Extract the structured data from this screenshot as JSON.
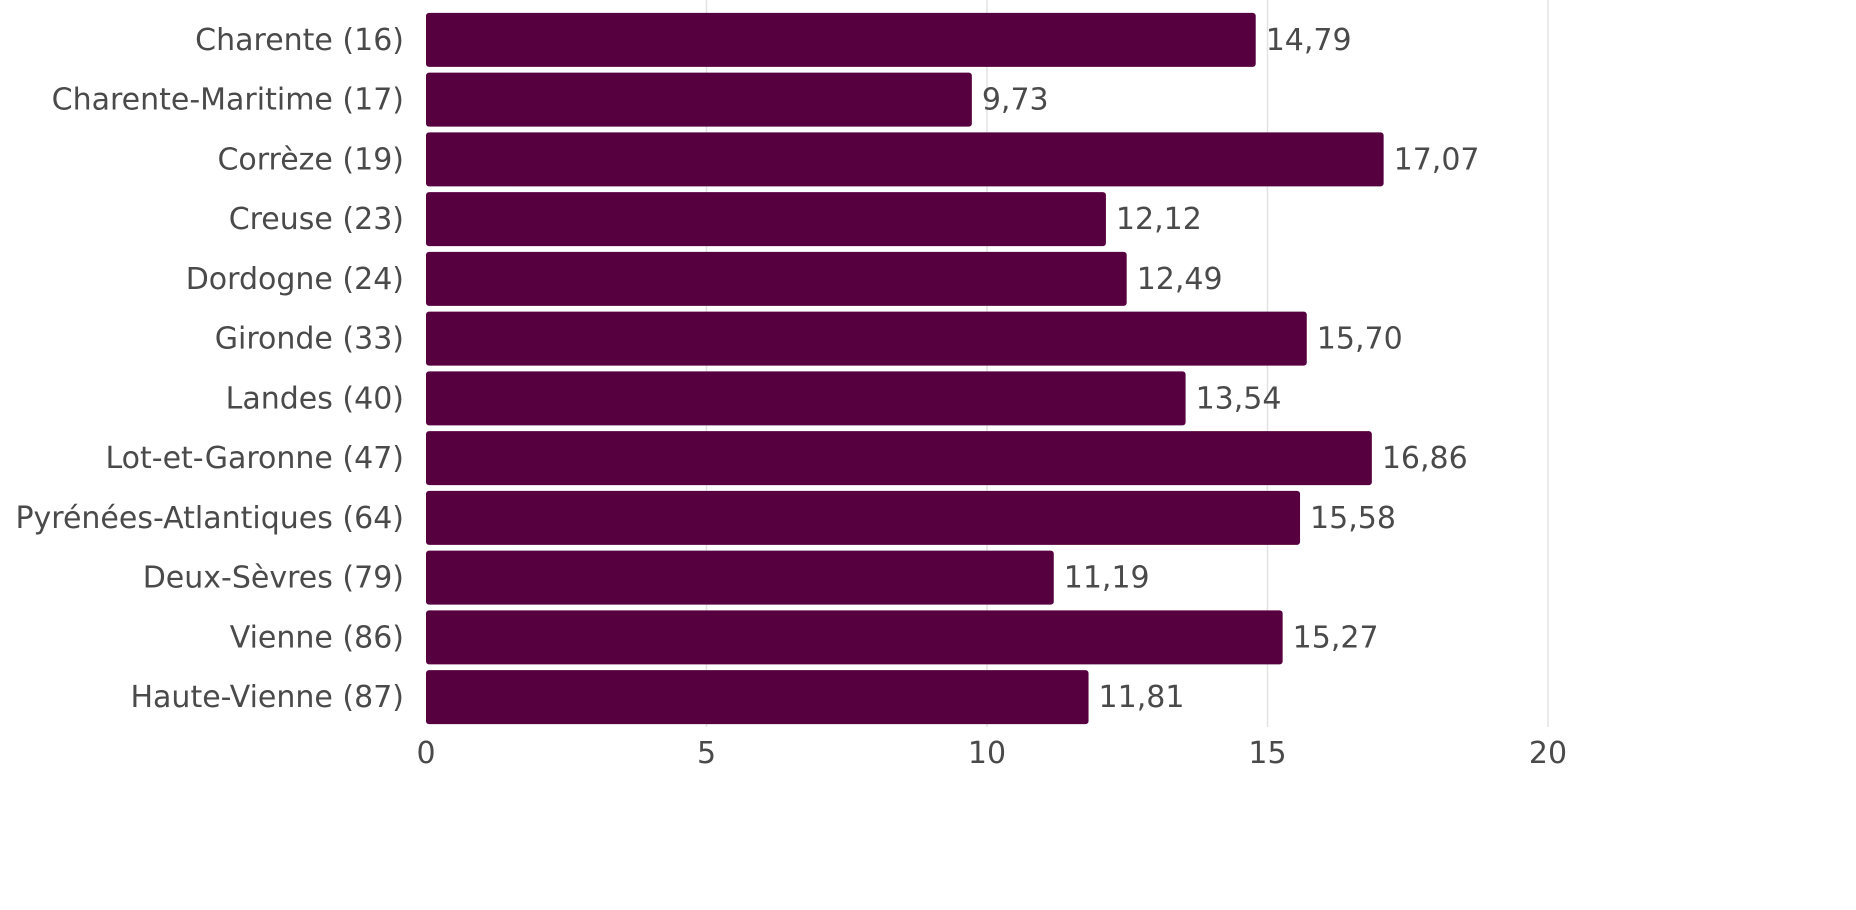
{
  "chart_data": {
    "type": "bar",
    "orientation": "horizontal",
    "title": "",
    "xlabel": "",
    "ylabel": "",
    "categories": [
      "Charente (16)",
      "Charente-Maritime (17)",
      "Corrèze (19)",
      "Creuse (23)",
      "Dordogne (24)",
      "Gironde (33)",
      "Landes (40)",
      "Lot-et-Garonne (47)",
      "Pyrénées-Atlantiques (64)",
      "Deux-Sèvres (79)",
      "Vienne (86)",
      "Haute-Vienne (87)"
    ],
    "values": [
      14.79,
      9.73,
      17.07,
      12.12,
      12.49,
      15.7,
      13.54,
      16.86,
      15.58,
      11.19,
      15.27,
      11.81
    ],
    "value_labels": [
      "14,79",
      "9,73",
      "17,07",
      "12,12",
      "12,49",
      "15,70",
      "13,54",
      "16,86",
      "15,58",
      "11,19",
      "15,27",
      "11,81"
    ],
    "xlim": [
      0,
      20
    ],
    "xticks": [
      0,
      5,
      10,
      15,
      20
    ],
    "xtick_labels": [
      "0",
      "5",
      "10",
      "15",
      "20"
    ],
    "grid": "vertical",
    "bar_color": "#570040"
  }
}
